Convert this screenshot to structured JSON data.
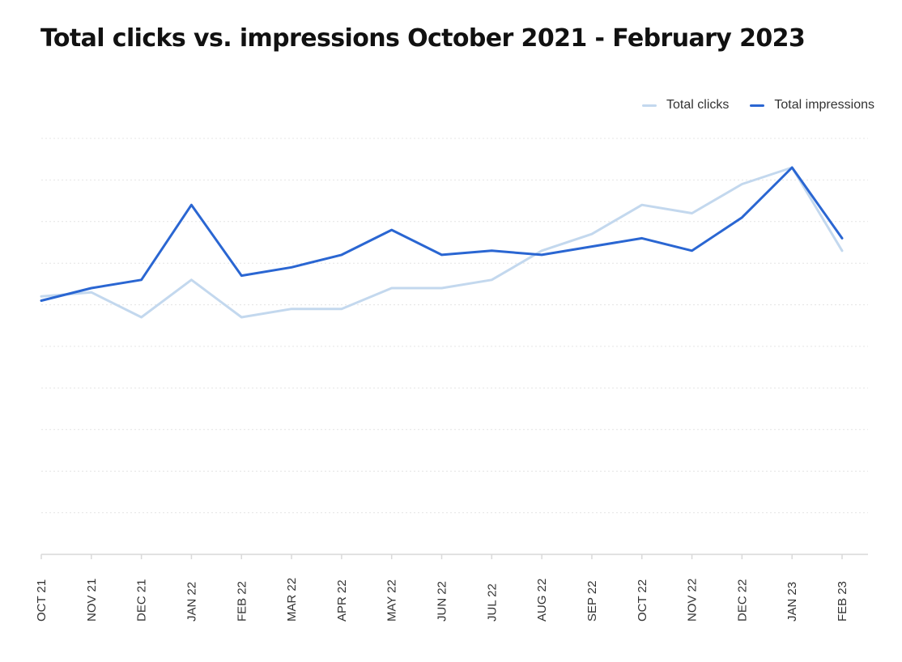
{
  "chart_data": {
    "type": "line",
    "title": "Total clicks vs. impressions October 2021 - February 2023",
    "xlabel": "",
    "ylabel": "",
    "categories": [
      "OCT 21",
      "NOV 21",
      "DEC 21",
      "JAN 22",
      "FEB 22",
      "MAR 22",
      "APR 22",
      "MAY 22",
      "JUN 22",
      "JUL 22",
      "AUG 22",
      "SEP 22",
      "OCT 22",
      "NOV 22",
      "DEC 22",
      "JAN 23",
      "FEB 23"
    ],
    "series": [
      {
        "name": "Total clicks",
        "color": "#c3d8ee",
        "values": [
          6.2,
          6.3,
          5.7,
          6.6,
          5.7,
          5.9,
          5.9,
          6.4,
          6.4,
          6.6,
          7.3,
          7.7,
          8.4,
          8.2,
          8.9,
          9.3,
          7.3
        ]
      },
      {
        "name": "Total impressions",
        "color": "#2a66d2",
        "values": [
          6.1,
          6.4,
          6.6,
          8.4,
          6.7,
          6.9,
          7.2,
          7.8,
          7.2,
          7.3,
          7.2,
          7.4,
          7.6,
          7.3,
          8.1,
          9.3,
          7.6
        ]
      }
    ],
    "ylim": [
      0,
      10
    ],
    "grid": true,
    "legend": "top-right",
    "colors": {
      "gridline": "#e4e4e4",
      "axis": "#d9d9d9",
      "tick_text": "#333333",
      "title_text": "#111111"
    }
  }
}
